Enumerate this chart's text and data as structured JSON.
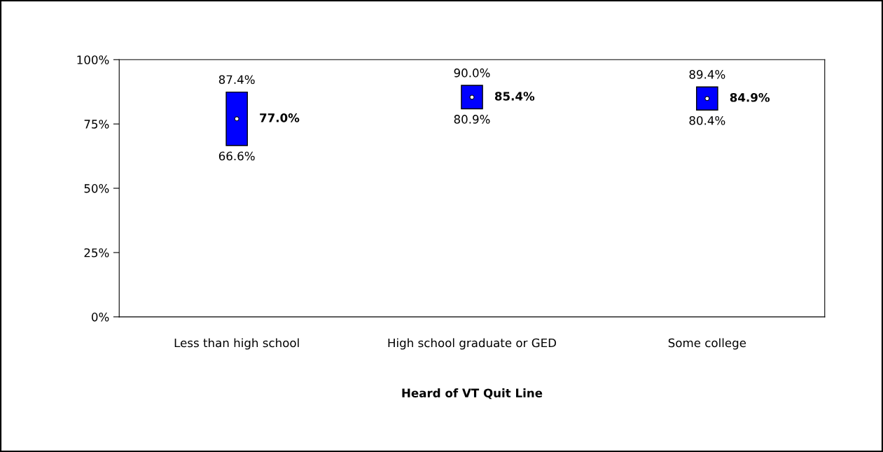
{
  "chart_data": {
    "type": "bar",
    "categories": [
      "Less than high school",
      "High school graduate or GED",
      "Some college"
    ],
    "xlabel": "Heard of VT Quit Line",
    "series": [
      {
        "color": "#0000ff",
        "base": [
          66.6,
          80.9,
          80.4
        ],
        "values": [
          20.8,
          9.1,
          9.0
        ]
      },
      {
        "type": "scatter",
        "color": "#ffffff",
        "values": [
          77.0,
          85.4,
          84.9
        ],
        "value_labels": [
          "77.0%",
          "85.4%",
          "84.9%"
        ]
      }
    ],
    "annotations": [
      {
        "text": "87.4%",
        "x": "Less than high school",
        "y": 87.4
      },
      {
        "text": "66.6%",
        "x": "Less than high school",
        "y": 66.6
      },
      {
        "text": "90.0%",
        "x": "High school graduate or GED",
        "y": 90.0
      },
      {
        "text": "80.9%",
        "x": "High school graduate or GED",
        "y": 80.9
      },
      {
        "text": "89.4%",
        "x": "Some college",
        "y": 89.4
      },
      {
        "text": "80.4%",
        "x": "Some college",
        "y": 80.4
      }
    ],
    "ylim": [
      0,
      100
    ],
    "yticks": [
      {
        "value": 0,
        "label": "0%"
      },
      {
        "value": 25,
        "label": "25%"
      },
      {
        "value": 50,
        "label": "50%"
      },
      {
        "value": 75,
        "label": "75%"
      },
      {
        "value": 100,
        "label": "100%"
      }
    ],
    "grid": false,
    "marker": "circle"
  }
}
